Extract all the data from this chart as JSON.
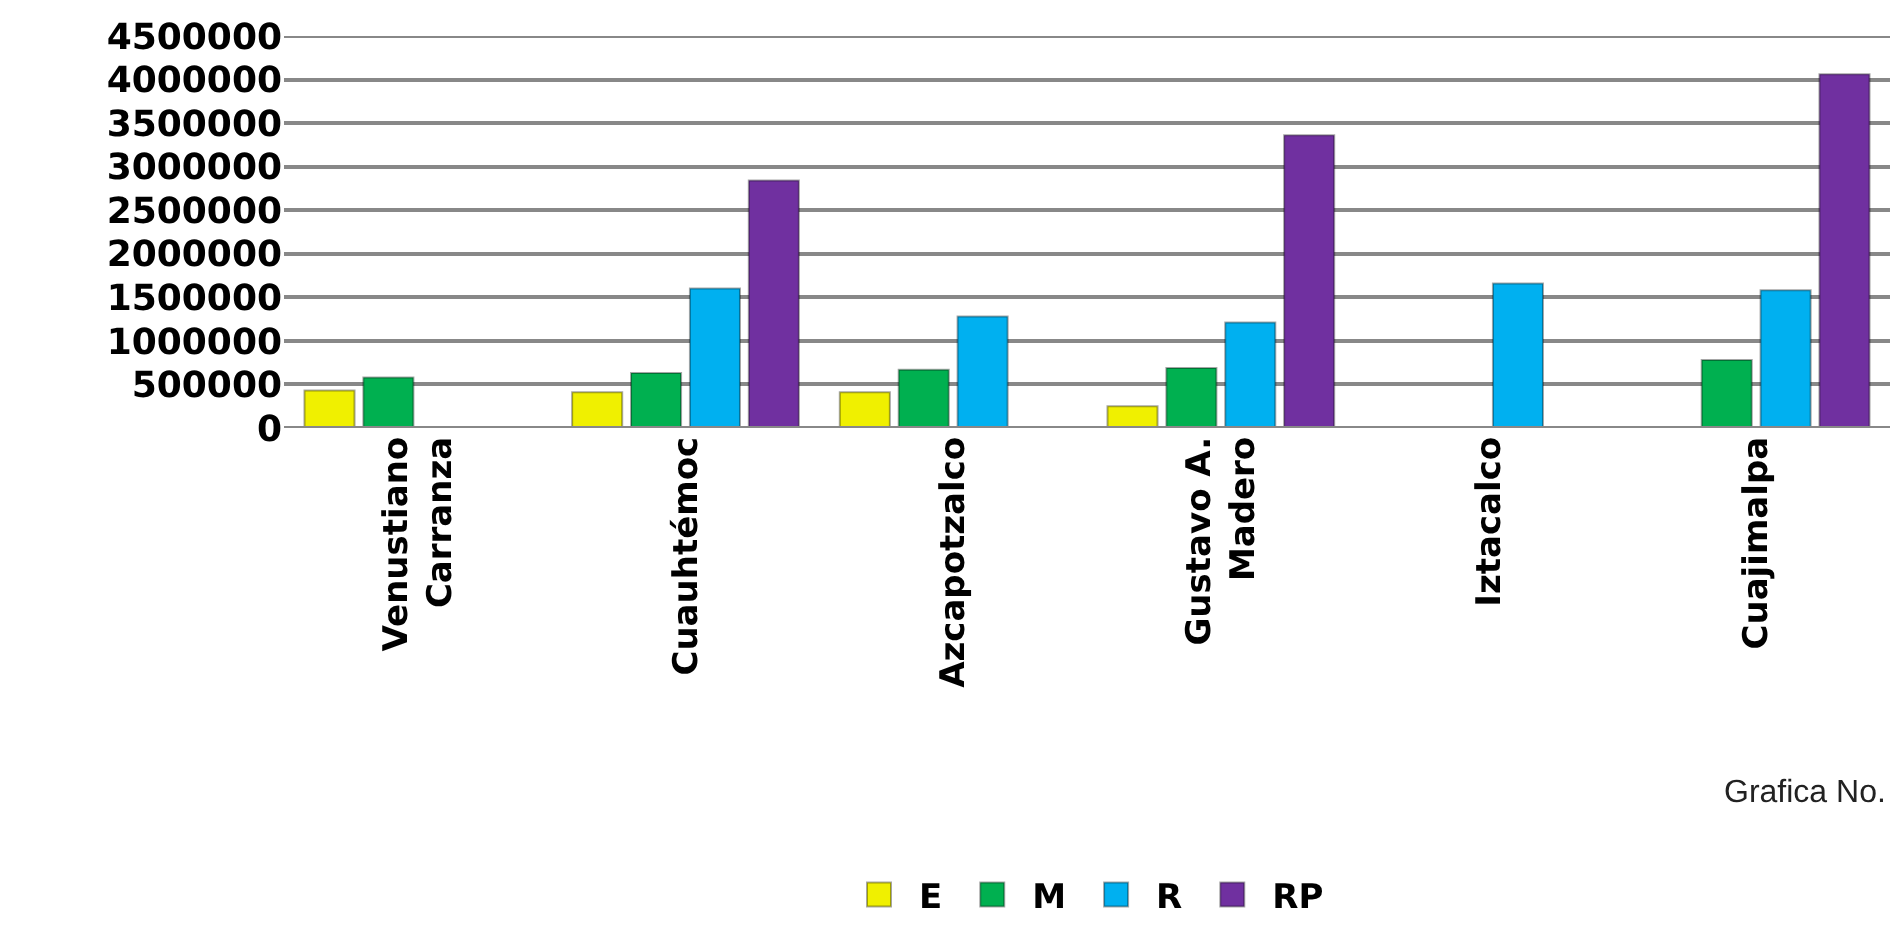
{
  "chart_data": {
    "type": "bar",
    "categories": [
      "Venustiano Carranza",
      "Cuauhtémoc",
      "Azcapotzalco",
      "Gustavo A. Madero",
      "Iztacalco",
      "Cuajimalpa"
    ],
    "series": [
      {
        "name": "E",
        "color": "#f0f000",
        "values": [
          430000,
          410000,
          410000,
          250000,
          null,
          null
        ]
      },
      {
        "name": "M",
        "color": "#00b050",
        "values": [
          580000,
          630000,
          670000,
          690000,
          null,
          780000
        ]
      },
      {
        "name": "R",
        "color": "#00b0f0",
        "values": [
          null,
          1600000,
          1280000,
          1210000,
          1660000,
          1580000
        ]
      },
      {
        "name": "RP",
        "color": "#7030a0",
        "values": [
          null,
          2840000,
          null,
          3360000,
          null,
          4060000
        ]
      }
    ],
    "ylim": [
      0,
      4500000
    ],
    "yticks": [
      0,
      500000,
      1000000,
      1500000,
      2000000,
      2500000,
      3000000,
      3500000,
      4000000,
      4500000
    ],
    "grid": "y",
    "legend": "bottom",
    "annotations": [
      "Grafica No."
    ]
  }
}
